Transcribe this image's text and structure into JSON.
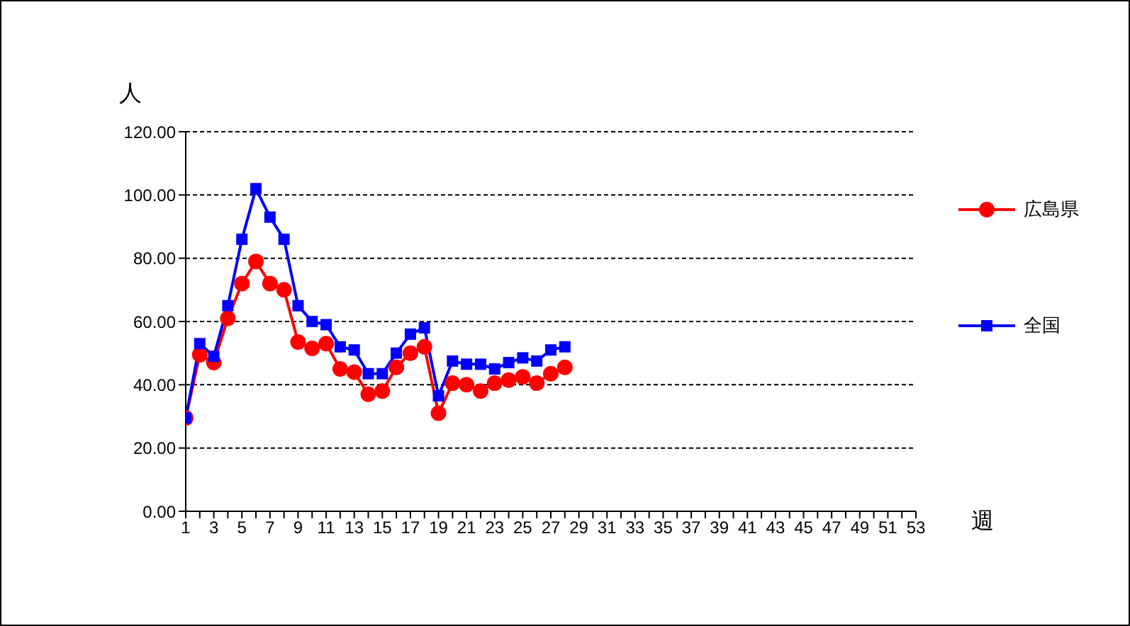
{
  "chart_data": {
    "type": "line",
    "ylabel": "人",
    "xlabel": "週",
    "x": [
      1,
      2,
      3,
      4,
      5,
      6,
      7,
      8,
      9,
      10,
      11,
      12,
      13,
      14,
      15,
      16,
      17,
      18,
      19,
      20,
      21,
      22,
      23,
      24,
      25,
      26,
      27,
      28
    ],
    "series": [
      {
        "name": "広島県",
        "color": "#ff0000",
        "marker": "circle",
        "values": [
          29.5,
          49.5,
          47,
          61,
          72,
          79,
          72,
          70,
          53.5,
          51.5,
          53,
          45,
          44,
          37,
          38,
          45.5,
          50,
          52,
          31,
          40.5,
          40,
          38,
          40.5,
          41.5,
          42.5,
          40.5,
          43.5,
          45.5
        ]
      },
      {
        "name": "全国",
        "color": "#0000ff",
        "marker": "square",
        "values": [
          29.5,
          53,
          49,
          65,
          86,
          102,
          93,
          86,
          65,
          60,
          59,
          52,
          51,
          43.5,
          43.5,
          50,
          56,
          58,
          36.5,
          47.5,
          46.5,
          46.5,
          45,
          47,
          48.5,
          47.5,
          51,
          52
        ]
      }
    ],
    "xlim": [
      1,
      53
    ],
    "xticks": [
      1,
      {
        "value": 2,
        "label": null
      },
      3,
      {
        "value": 4,
        "label": null
      },
      5,
      {
        "value": 6,
        "label": null
      },
      7,
      {
        "value": 8,
        "label": null
      },
      9,
      {
        "value": 10,
        "label": null
      },
      11,
      {
        "value": 12,
        "label": null
      },
      13,
      {
        "value": 14,
        "label": null
      },
      15,
      {
        "value": 16,
        "label": null
      },
      17,
      {
        "value": 18,
        "label": null
      },
      19,
      {
        "value": 20,
        "label": null
      },
      21,
      {
        "value": 22,
        "label": null
      },
      23,
      {
        "value": 24,
        "label": null
      },
      25,
      {
        "value": 26,
        "label": null
      },
      27,
      {
        "value": 28,
        "label": null
      },
      29,
      {
        "value": 30,
        "label": null
      },
      31,
      {
        "value": 32,
        "label": null
      },
      33,
      {
        "value": 34,
        "label": null
      },
      35,
      {
        "value": 36,
        "label": null
      },
      37,
      {
        "value": 38,
        "label": null
      },
      39,
      {
        "value": 40,
        "label": null
      },
      41,
      {
        "value": 42,
        "label": null
      },
      43,
      {
        "value": 44,
        "label": null
      },
      45,
      {
        "value": 46,
        "label": null
      },
      47,
      {
        "value": 48,
        "label": null
      },
      49,
      {
        "value": 50,
        "label": null
      },
      51,
      {
        "value": 52,
        "label": null
      },
      53
    ],
    "ylim": [
      0,
      120
    ],
    "yticks": [
      {
        "value": 0,
        "label": "0.00"
      },
      {
        "value": 20,
        "label": "20.00"
      },
      {
        "value": 40,
        "label": "40.00"
      },
      {
        "value": 60,
        "label": "60.00"
      },
      {
        "value": 80,
        "label": "80.00"
      },
      {
        "value": 100,
        "label": "100.00"
      },
      {
        "value": 120,
        "label": "120.00"
      }
    ],
    "grid": "y",
    "legend": "right",
    "line_style": "solid"
  }
}
